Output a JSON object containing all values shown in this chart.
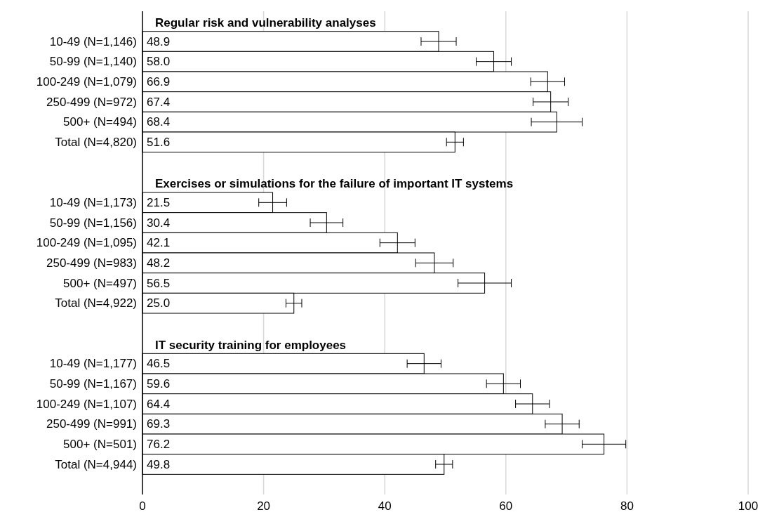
{
  "chart_data": {
    "type": "bar",
    "orientation": "horizontal",
    "categories": [
      null,
      "10-49 (N=1,146)",
      "50-99 (N=1,140)",
      "100-249 (N=1,079)",
      "250-499 (N=972)",
      "500+ (N=494)",
      "Total (N=4,820)",
      null,
      null,
      "10-49 (N=1,173)",
      "50-99 (N=1,156)",
      "100-249 (N=1,095)",
      "250-499 (N=983)",
      "500+ (N=497)",
      "Total (N=4,922)",
      null,
      null,
      "10-49 (N=1,177)",
      "50-99 (N=1,167)",
      "100-249 (N=1,107)",
      "250-499 (N=991)",
      "500+ (N=501)",
      "Total (N=4,944)",
      null
    ],
    "values": [
      null,
      48.9,
      58.0,
      66.9,
      67.4,
      68.4,
      51.6,
      null,
      null,
      21.5,
      30.4,
      42.1,
      48.2,
      56.5,
      25.0,
      null,
      null,
      46.5,
      59.6,
      64.4,
      69.3,
      76.2,
      49.8,
      null
    ],
    "value_labels": [
      null,
      "48.9",
      "58.0",
      "66.9",
      "67.4",
      "68.4",
      "51.6",
      null,
      null,
      "21.5",
      "30.4",
      "42.1",
      "48.2",
      "56.5",
      "25.0",
      null,
      null,
      "46.5",
      "59.6",
      "64.4",
      "69.3",
      "76.2",
      "49.8",
      null
    ],
    "errors": [
      null,
      2.9,
      2.9,
      2.8,
      2.9,
      4.2,
      1.4,
      null,
      null,
      2.3,
      2.7,
      2.9,
      3.1,
      4.4,
      1.3,
      null,
      null,
      2.8,
      2.8,
      2.8,
      2.8,
      3.6,
      1.4,
      null
    ],
    "color": "#ffffff",
    "annotations": [
      "Regular risk and vulnerability analyses",
      "Exercises or simulations for the failure of important IT systems",
      "IT security training for employees"
    ],
    "xlim": [
      0,
      100
    ],
    "xticks": [
      0,
      20,
      40,
      60,
      80,
      100
    ],
    "grid": "x"
  }
}
